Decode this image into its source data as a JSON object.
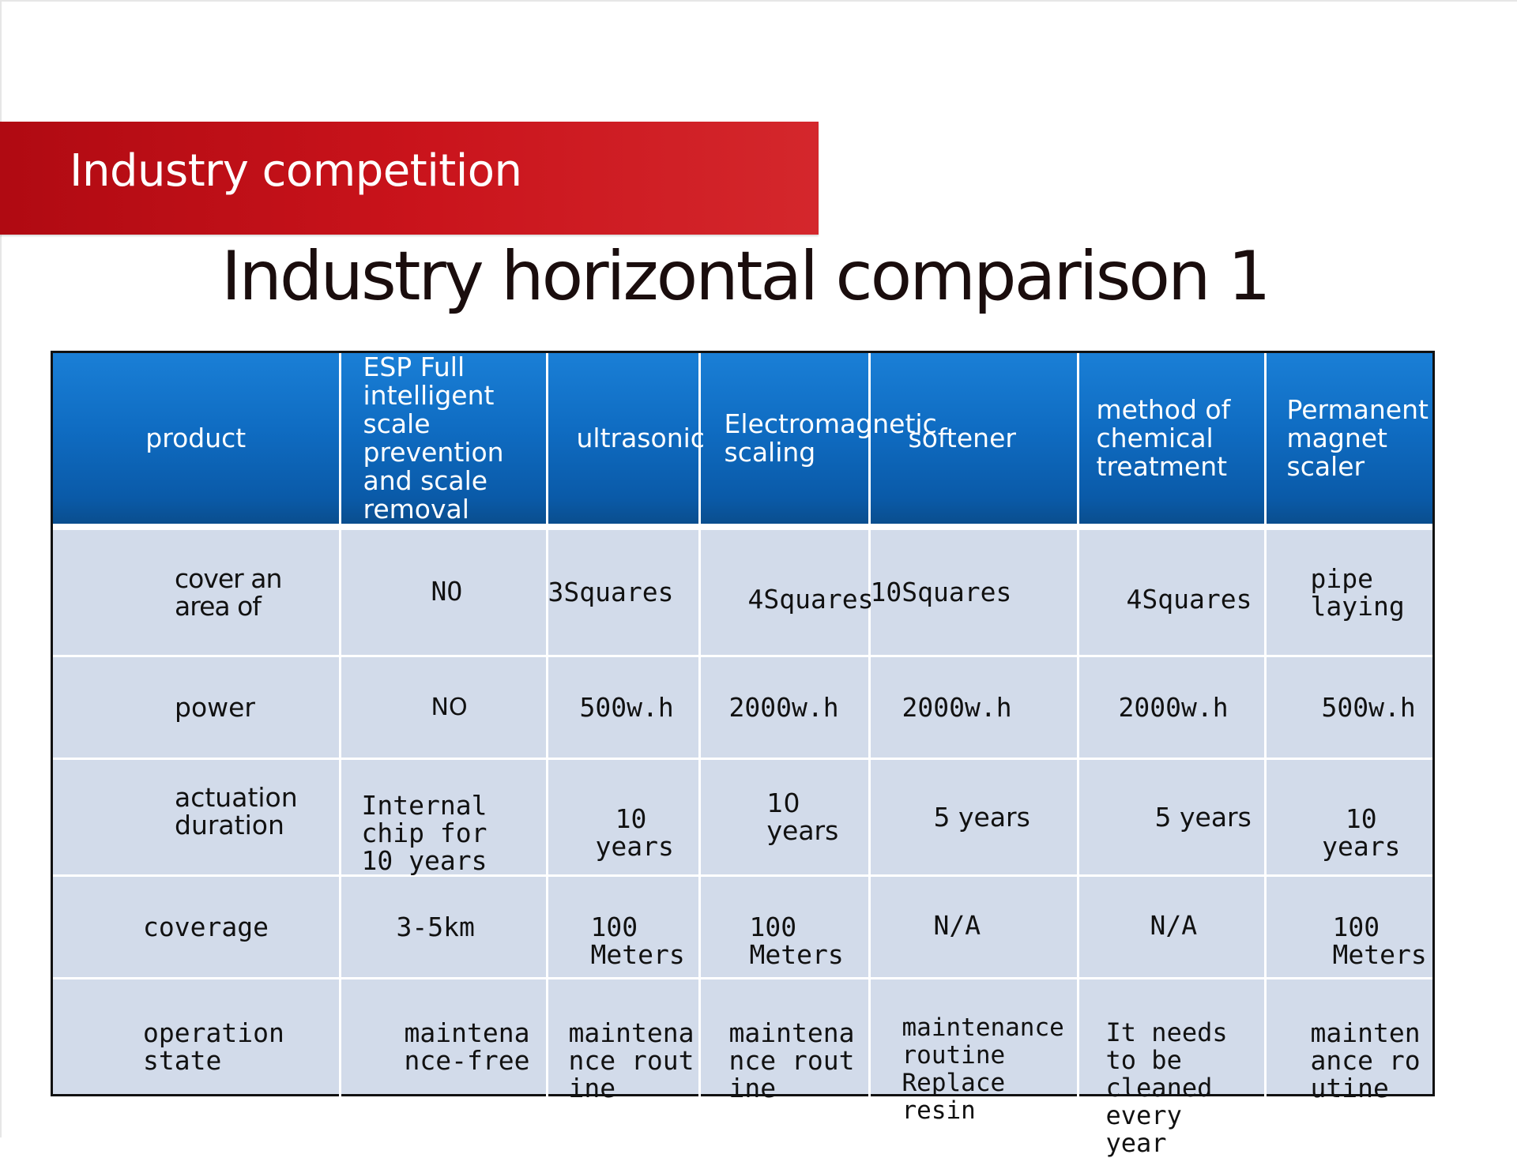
{
  "banner": {
    "title": "Industry competition"
  },
  "page": {
    "title": "Industry horizontal comparison  1"
  },
  "table": {
    "headers": [
      "product",
      "ESP  Full intelligent scale prevention and scale removal",
      "ultrasonic",
      "Electromagnetic scaling",
      "softener",
      "method of chemical treatment",
      "Permanent magnet scaler"
    ],
    "rows": [
      {
        "label": "cover an area of",
        "cells": [
          "NO",
          "3Squares",
          "4Squares",
          "10Squares",
          "4Squares",
          "pipe laying"
        ]
      },
      {
        "label": "power",
        "cells": [
          "NO",
          "500w.h",
          "2000w.h",
          "2000w.h",
          "2000w.h",
          "500w.h"
        ]
      },
      {
        "label": "actuation duration",
        "cells": [
          "Internal chip for 10 years",
          "10 years",
          "10 years",
          "5  years",
          "5 years",
          "10 years"
        ]
      },
      {
        "label": "coverage",
        "cells": [
          "3-5km",
          "100 Meters",
          "100 Meters",
          "N/A",
          "N/A",
          "100 Meters"
        ]
      },
      {
        "label": "operation state",
        "cells": [
          "maintenance-free",
          "maintenance routine",
          "maintenance routine",
          "maintenance routine  Replace resin",
          "It needs to be cleaned every year",
          "maintenance routine"
        ]
      }
    ]
  },
  "colors": {
    "banner": "#c9131b",
    "header": "#0f6cc2",
    "body": "#d2dbea"
  }
}
